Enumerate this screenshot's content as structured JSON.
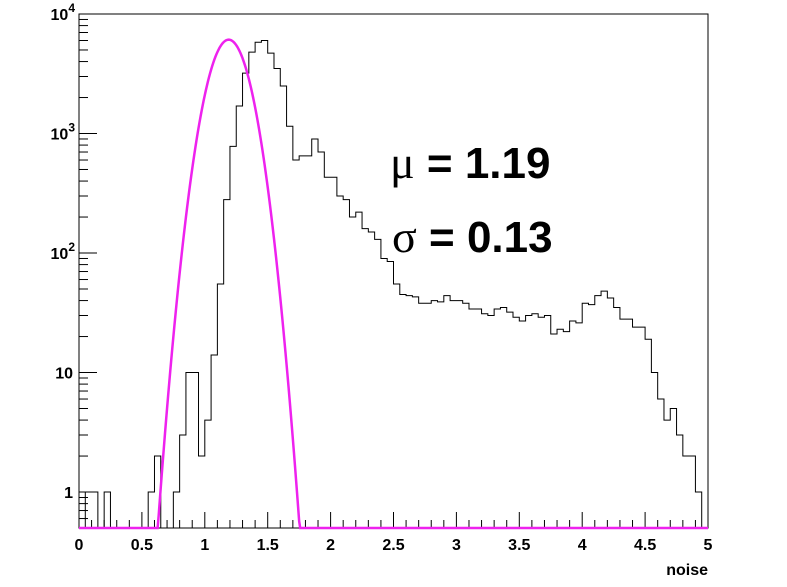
{
  "chart_data": {
    "type": "histogram",
    "xlabel": "noise",
    "ylabel": "",
    "xlim": [
      0,
      5
    ],
    "ylim": [
      0.5,
      10000
    ],
    "yscale": "log",
    "grid": false,
    "x_ticks": [
      "0",
      "0.5",
      "1",
      "1.5",
      "2",
      "2.5",
      "3",
      "3.5",
      "4",
      "4.5",
      "5"
    ],
    "y_ticks": [
      {
        "value": 1,
        "base": "1",
        "exp": ""
      },
      {
        "value": 10,
        "base": "10",
        "exp": ""
      },
      {
        "value": 100,
        "base": "10",
        "exp": "2"
      },
      {
        "value": 1000,
        "base": "10",
        "exp": "3"
      },
      {
        "value": 10000,
        "base": "10",
        "exp": "4"
      }
    ],
    "bin_width": 0.05,
    "bin_start": 0,
    "counts": [
      0,
      1,
      1,
      0,
      1,
      0,
      0,
      0,
      0,
      0,
      0,
      1,
      2,
      0,
      0,
      1,
      3,
      10,
      10,
      2,
      4,
      14,
      55,
      280,
      780,
      1700,
      3200,
      4800,
      5800,
      6000,
      4700,
      3500,
      2500,
      1150,
      600,
      650,
      650,
      900,
      700,
      430,
      430,
      300,
      280,
      200,
      220,
      160,
      150,
      130,
      90,
      85,
      55,
      45,
      44,
      43,
      38,
      38,
      40,
      39,
      44,
      40,
      40,
      38,
      34,
      34,
      31,
      30,
      34,
      35,
      32,
      29,
      27,
      30,
      31,
      29,
      30,
      21,
      23,
      22,
      27,
      26,
      38,
      37,
      44,
      48,
      42,
      35,
      28,
      28,
      24,
      24,
      19,
      10,
      6,
      4,
      5,
      3,
      2,
      2,
      1,
      0
    ]
  },
  "fit": {
    "type": "gaussian",
    "color": "#ee22ee",
    "mean": 1.19,
    "sigma": 0.13,
    "amplitude": 6100
  },
  "annotations": {
    "mu_symbol": "μ",
    "mu_text": " = 1.19",
    "sigma_symbol": "σ",
    "sigma_text": " = 0.13"
  },
  "colors": {
    "histogram": "#000000",
    "fit": "#ee22ee",
    "frame": "#000000"
  }
}
